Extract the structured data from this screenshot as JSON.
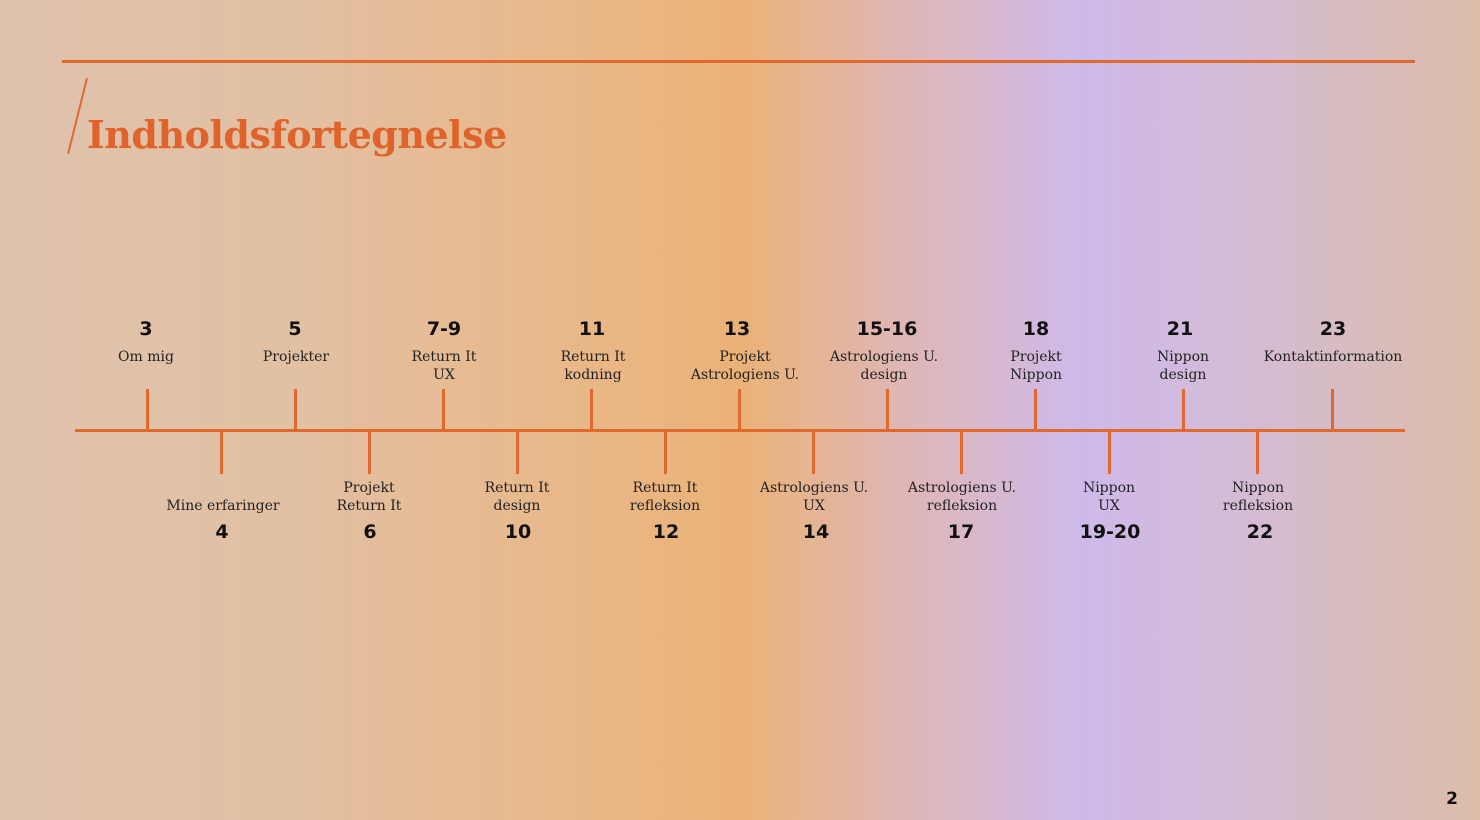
{
  "title": "Indholdsfortegnelse",
  "page_number": "2",
  "accent_color": "#e06a2e",
  "timeline_top": [
    {
      "page": "3",
      "label": "Om mig"
    },
    {
      "page": "5",
      "label": "Projekter"
    },
    {
      "page": "7-9",
      "label": "Return It\nUX"
    },
    {
      "page": "11",
      "label": "Return It\nkodning"
    },
    {
      "page": "13",
      "label": "Projekt\nAstrologiens U."
    },
    {
      "page": "15-16",
      "label": "Astrologiens U.\ndesign"
    },
    {
      "page": "18",
      "label": "Projekt\nNippon"
    },
    {
      "page": "21",
      "label": "Nippon\ndesign"
    },
    {
      "page": "23",
      "label": "Kontaktinformation"
    }
  ],
  "timeline_bottom": [
    {
      "page": "4",
      "label": "Mine erfaringer"
    },
    {
      "page": "6",
      "label": "Projekt\nReturn It"
    },
    {
      "page": "10",
      "label": "Return It\ndesign"
    },
    {
      "page": "12",
      "label": "Return It\nrefleksion"
    },
    {
      "page": "14",
      "label": "Astrologiens U.\nUX"
    },
    {
      "page": "17",
      "label": "Astrologiens U.\nrefleksion"
    },
    {
      "page": "19-20",
      "label": "Nippon\nUX"
    },
    {
      "page": "22",
      "label": "Nippon\nrefleksion"
    }
  ]
}
